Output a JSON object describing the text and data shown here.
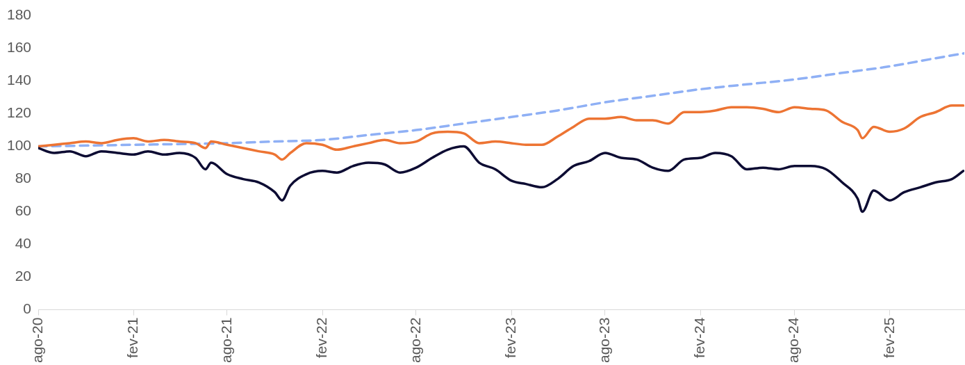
{
  "chart_data": {
    "type": "line",
    "line_style": "solid",
    "marker": "none",
    "grid": false,
    "legend": false,
    "xlim": [
      "2020-08-01",
      "2025-06-25"
    ],
    "xticks": [
      {
        "value": "2020-08-01",
        "label": "ago-20"
      },
      {
        "value": "2021-02-01",
        "label": "fev-21"
      },
      {
        "value": "2021-08-01",
        "label": "ago-21"
      },
      {
        "value": "2022-02-01",
        "label": "fev-22"
      },
      {
        "value": "2022-08-01",
        "label": "ago-22"
      },
      {
        "value": "2023-02-01",
        "label": "fev-23"
      },
      {
        "value": "2023-08-01",
        "label": "ago-23"
      },
      {
        "value": "2024-02-01",
        "label": "fev-24"
      },
      {
        "value": "2024-08-01",
        "label": "ago-24"
      },
      {
        "value": "2025-02-01",
        "label": "fev-25"
      }
    ],
    "ylim": [
      0,
      180
    ],
    "yticks": [
      0,
      20,
      40,
      60,
      80,
      100,
      120,
      140,
      160,
      180
    ],
    "x": [
      "2020-08-01",
      "2020-09-01",
      "2020-10-01",
      "2020-11-01",
      "2020-12-01",
      "2021-01-01",
      "2021-02-01",
      "2021-03-01",
      "2021-04-01",
      "2021-05-01",
      "2021-06-01",
      "2021-06-20",
      "2021-07-01",
      "2021-08-01",
      "2021-09-01",
      "2021-10-01",
      "2021-11-01",
      "2021-11-15",
      "2021-12-01",
      "2022-01-01",
      "2022-02-01",
      "2022-03-01",
      "2022-04-01",
      "2022-05-01",
      "2022-06-01",
      "2022-07-01",
      "2022-08-01",
      "2022-09-01",
      "2022-10-01",
      "2022-11-01",
      "2022-12-01",
      "2023-01-01",
      "2023-02-01",
      "2023-03-01",
      "2023-04-01",
      "2023-05-01",
      "2023-06-01",
      "2023-07-01",
      "2023-08-01",
      "2023-09-01",
      "2023-10-01",
      "2023-11-01",
      "2023-12-01",
      "2024-01-01",
      "2024-02-01",
      "2024-03-01",
      "2024-04-01",
      "2024-05-01",
      "2024-06-01",
      "2024-07-01",
      "2024-08-01",
      "2024-09-01",
      "2024-10-01",
      "2024-11-01",
      "2024-12-01",
      "2024-12-10",
      "2025-01-01",
      "2025-02-01",
      "2025-03-01",
      "2025-04-01",
      "2025-05-01",
      "2025-06-01",
      "2025-06-23"
    ],
    "series": [
      {
        "color": "#0d0c33",
        "values": [
          99,
          96,
          97,
          94,
          97,
          96,
          95,
          97,
          95,
          96,
          93,
          86,
          90,
          83,
          80,
          78,
          72,
          67,
          76,
          83,
          85,
          84,
          88,
          90,
          89,
          84,
          87,
          93,
          98,
          100,
          90,
          86,
          79,
          77,
          75,
          80,
          88,
          91,
          96,
          93,
          92,
          87,
          85,
          92,
          93,
          96,
          94,
          86,
          87,
          86,
          88,
          88,
          86,
          78,
          68,
          60,
          73,
          67,
          72,
          75,
          78,
          80,
          85
        ]
      },
      {
        "color": "#ed7433",
        "values": [
          100,
          101,
          102,
          103,
          102,
          104,
          105,
          103,
          104,
          103,
          102,
          99,
          103,
          101,
          99,
          97,
          95,
          92,
          96,
          102,
          101,
          98,
          100,
          102,
          104,
          102,
          103,
          108,
          109,
          108,
          102,
          103,
          102,
          101,
          101,
          106,
          112,
          117,
          117,
          118,
          116,
          116,
          114,
          121,
          121,
          122,
          124,
          124,
          123,
          121,
          124,
          123,
          122,
          115,
          110,
          105,
          112,
          109,
          111,
          118,
          121,
          125,
          125
        ]
      },
      {
        "color": "#8fb0f5",
        "line_style": "dashed",
        "x": [
          "2020-08-01",
          "2021-02-01",
          "2021-08-01",
          "2021-11-01",
          "2022-02-01",
          "2022-05-01",
          "2022-08-01",
          "2022-11-01",
          "2023-02-01",
          "2023-05-01",
          "2023-08-01",
          "2023-11-01",
          "2024-02-01",
          "2024-05-01",
          "2024-08-01",
          "2024-11-01",
          "2025-02-01",
          "2025-05-01",
          "2025-06-25"
        ],
        "values": [
          100,
          101,
          102,
          103,
          104,
          107,
          110,
          114,
          118,
          122,
          127,
          131,
          135,
          138,
          141,
          145,
          149,
          154,
          157
        ]
      }
    ]
  }
}
